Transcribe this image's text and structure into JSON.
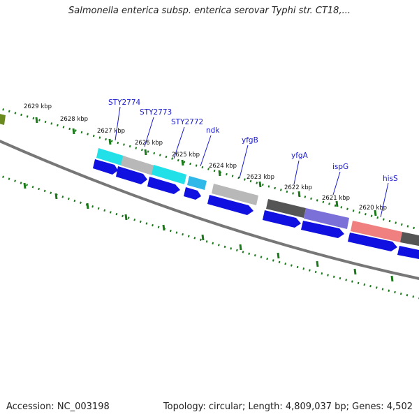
{
  "title": "Salmonella enterica subsp. enterica serovar Typhi str. CT18,...",
  "accession": "Accession: NC_003198",
  "topology": "Topology: circular; Length: 4,809,037 bp; Genes: 4,502",
  "kbp_labels": [
    "2629 kbp",
    "2628 kbp",
    "2627 kbp",
    "2626 kbp",
    "2625 kbp",
    "2624 kbp",
    "2623 kbp",
    "2622 kbp",
    "2621 kbp",
    "2620 kbp"
  ],
  "gene_labels": [
    "STY2774",
    "STY2773",
    "STY2772",
    "ndk",
    "yfgB",
    "yfgA",
    "ispG",
    "hisS"
  ],
  "colors": {
    "cyan": "#22e0e8",
    "grey": "#b8b8b8",
    "dark_grey": "#555555",
    "light_blue": "#30b8e8",
    "purple": "#7a70d8",
    "salmon": "#f08080",
    "olive": "#6a8a20",
    "arrow_blue": "#1010e0",
    "tick_green": "#1a7a1a",
    "label_blue": "#1a1acc"
  }
}
